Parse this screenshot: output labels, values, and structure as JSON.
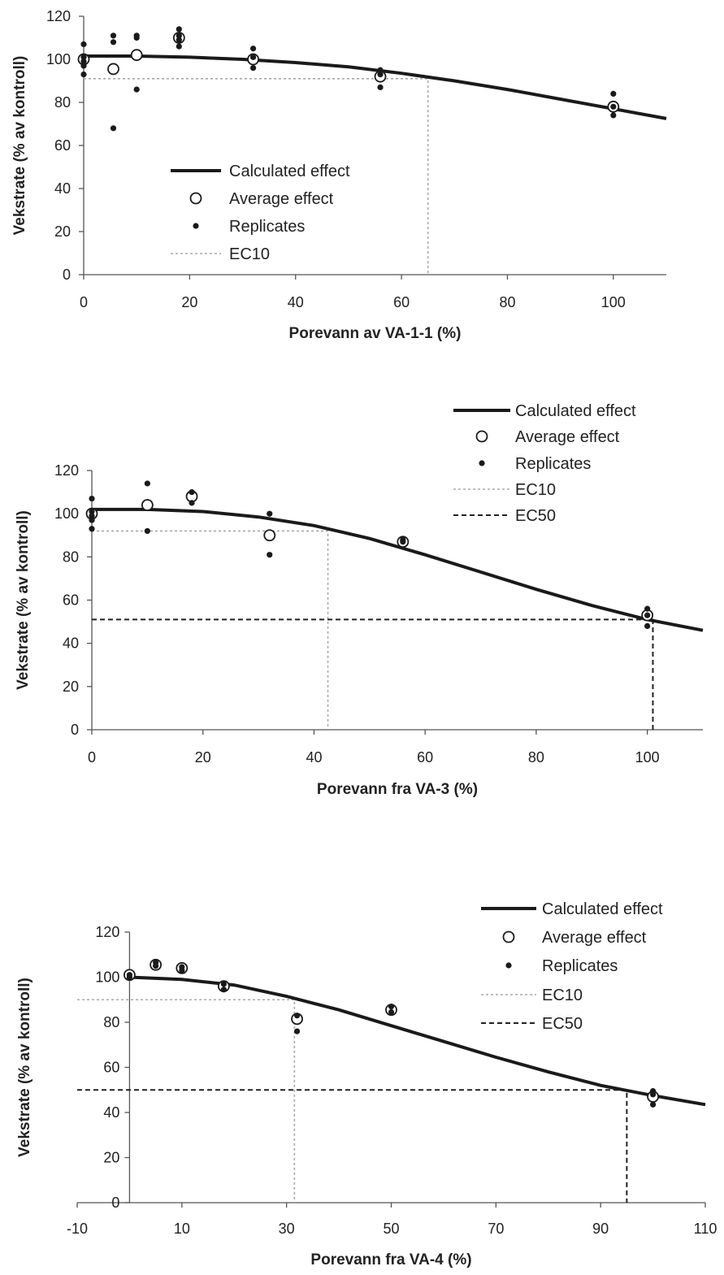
{
  "legend": {
    "calculated": "Calculated effect",
    "average": "Average effect",
    "replicates": "Replicates",
    "ec10": "EC10",
    "ec50": "EC50"
  },
  "chart_data": [
    {
      "type": "scatter",
      "xlabel": "Porevann av VA-1-1 (%)",
      "ylabel": "Vekstrate (% av kontroll)",
      "xlim": [
        0,
        110
      ],
      "ylim": [
        0,
        120
      ],
      "xticks": [
        0,
        20,
        40,
        60,
        80,
        100
      ],
      "yticks": [
        0,
        20,
        40,
        60,
        80,
        100,
        120
      ],
      "legend_placement": "bottom-left inside",
      "series": [
        {
          "name": "Calculated effect",
          "kind": "line",
          "x": [
            0,
            10,
            20,
            30,
            40,
            50,
            60,
            70,
            80,
            90,
            100,
            110
          ],
          "y": [
            101.5,
            101.5,
            101,
            100,
            98.5,
            96.5,
            93.5,
            90,
            86,
            81.5,
            77,
            72.5
          ]
        },
        {
          "name": "Average effect",
          "kind": "marker-open",
          "x": [
            0,
            5.6,
            10,
            18,
            32,
            56,
            100
          ],
          "y": [
            100,
            95.5,
            102,
            110,
            100,
            92,
            78
          ]
        },
        {
          "name": "Replicates",
          "kind": "marker-filled",
          "x": [
            0,
            0,
            0,
            0,
            0,
            5.6,
            5.6,
            5.6,
            10,
            10,
            10,
            18,
            18,
            18,
            18,
            32,
            32,
            32,
            56,
            56,
            56,
            100,
            100,
            100
          ],
          "y": [
            107,
            101,
            99,
            97,
            93,
            111,
            108,
            68,
            111,
            110,
            86,
            114,
            111,
            109,
            106,
            105,
            101,
            96,
            95,
            93,
            87,
            84,
            78,
            74
          ]
        },
        {
          "name": "EC10",
          "kind": "reference",
          "x": [
            0,
            65,
            65
          ],
          "y": [
            91,
            91,
            0
          ]
        }
      ]
    },
    {
      "type": "scatter",
      "xlabel": "Porevann fra VA-3 (%)",
      "ylabel": "Vekstrate (% av kontroll)",
      "xlim": [
        0,
        110
      ],
      "ylim": [
        0,
        120
      ],
      "xticks": [
        0,
        20,
        40,
        60,
        80,
        100
      ],
      "yticks": [
        0,
        20,
        40,
        60,
        80,
        100,
        120
      ],
      "legend_placement": "top-right outside",
      "series": [
        {
          "name": "Calculated effect",
          "kind": "line",
          "x": [
            0,
            10,
            20,
            30,
            40,
            50,
            60,
            70,
            80,
            90,
            100,
            110
          ],
          "y": [
            102,
            102,
            101,
            98.5,
            94.5,
            88.5,
            81,
            73,
            65,
            57.5,
            51,
            46
          ]
        },
        {
          "name": "Average effect",
          "kind": "marker-open",
          "x": [
            0,
            10,
            18,
            32,
            56,
            100
          ],
          "y": [
            100,
            104,
            108,
            90,
            87,
            53
          ]
        },
        {
          "name": "Replicates",
          "kind": "marker-filled",
          "x": [
            0,
            0,
            0,
            0,
            0,
            10,
            10,
            18,
            18,
            32,
            32,
            56,
            56,
            100,
            100,
            100
          ],
          "y": [
            107,
            101,
            99,
            97,
            93,
            114,
            92,
            110,
            105,
            100,
            81,
            88,
            87,
            56,
            53,
            48
          ]
        },
        {
          "name": "EC10",
          "kind": "reference",
          "x": [
            0,
            42.5,
            42.5
          ],
          "y": [
            92,
            92,
            0
          ]
        },
        {
          "name": "EC50",
          "kind": "reference",
          "x": [
            0,
            101,
            101
          ],
          "y": [
            51,
            51,
            0
          ]
        }
      ]
    },
    {
      "type": "scatter",
      "xlabel": "Porevann fra VA-4 (%)",
      "ylabel": "Vekstrate (% av kontroll)",
      "xlim": [
        -10,
        110
      ],
      "ylim": [
        0,
        120
      ],
      "xticks": [
        -10,
        10,
        30,
        50,
        70,
        90,
        110
      ],
      "yticks": [
        0,
        20,
        40,
        60,
        80,
        100,
        120
      ],
      "legend_placement": "top-right outside",
      "series": [
        {
          "name": "Calculated effect",
          "kind": "line",
          "x": [
            0,
            10,
            20,
            30,
            40,
            50,
            60,
            70,
            80,
            90,
            100,
            110
          ],
          "y": [
            100,
            99,
            96.5,
            91.5,
            85.5,
            78.5,
            71.5,
            64.5,
            58,
            52,
            47.5,
            43.5
          ]
        },
        {
          "name": "Average effect",
          "kind": "marker-open",
          "x": [
            0,
            5,
            10,
            18,
            32,
            50,
            100
          ],
          "y": [
            101,
            105.5,
            104,
            96,
            81.5,
            85.5,
            47
          ]
        },
        {
          "name": "Replicates",
          "kind": "marker-filled",
          "x": [
            0,
            0,
            5,
            5,
            10,
            10,
            18,
            18,
            32,
            32,
            50,
            50,
            100,
            100,
            100
          ],
          "y": [
            101,
            100,
            106.5,
            105,
            104.5,
            103,
            97,
            94.5,
            83,
            76,
            87,
            84.5,
            49.5,
            48,
            43.5
          ]
        },
        {
          "name": "EC10",
          "kind": "reference",
          "x": [
            -10,
            31.5,
            31.5
          ],
          "y": [
            90,
            90,
            0
          ]
        },
        {
          "name": "EC50",
          "kind": "reference",
          "x": [
            -10,
            95,
            95
          ],
          "y": [
            50,
            50,
            0
          ]
        }
      ]
    }
  ]
}
